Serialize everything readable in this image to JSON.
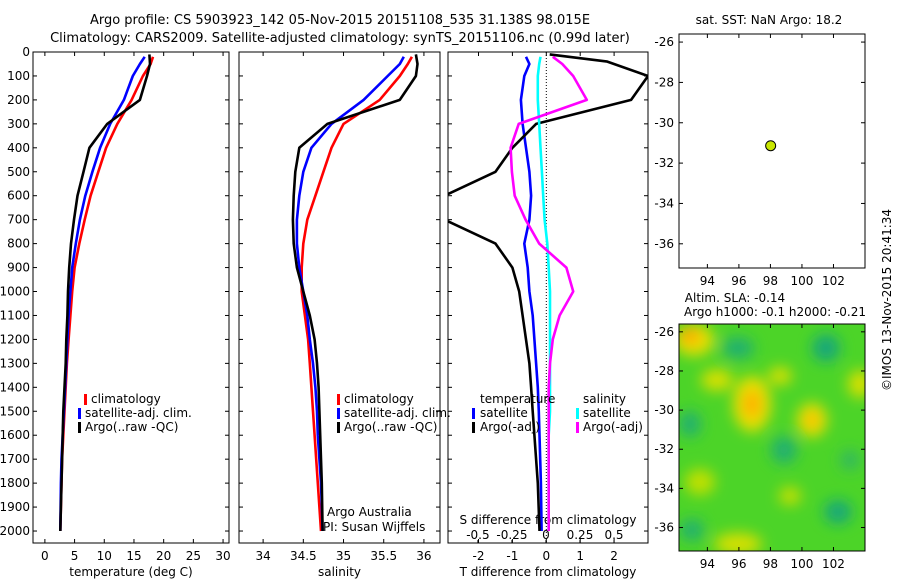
{
  "header": {
    "line1": "Argo profile: CS 5903923_142 05-Nov-2015 20151108_535 31.138S 98.015E",
    "line2": "Climatology: CARS2009. Satellite-adjusted climatology: synTS_20151106.nc (0.99d later)"
  },
  "colors": {
    "climatology": "#ff0000",
    "satellite": "#0000ff",
    "argo": "#000000",
    "sal_satellite": "#00ffff",
    "sal_argo": "#ff00ff",
    "float_marker": "#c8e600"
  },
  "chart_data": [
    {
      "type": "line",
      "xlabel": "temperature (deg C)",
      "xlim": [
        -2,
        31
      ],
      "ylim": [
        2050,
        0
      ],
      "xticks": [
        0,
        5,
        10,
        15,
        20,
        25,
        30
      ],
      "yticks": [
        0,
        100,
        200,
        300,
        400,
        500,
        600,
        700,
        800,
        900,
        1000,
        1100,
        1200,
        1300,
        1400,
        1500,
        1600,
        1700,
        1800,
        1900,
        2000
      ],
      "legend": [
        "climatology",
        "satellite-adj. clim.",
        "Argo(..raw -QC)"
      ],
      "series": [
        {
          "name": "climatology",
          "color_key": "climatology",
          "x": [
            18.2,
            17.8,
            16.5,
            14.6,
            12.2,
            10.3,
            9.0,
            7.7,
            6.7,
            5.8,
            5.0,
            4.6,
            4.3,
            4.0,
            3.7,
            3.5,
            3.3,
            3.1,
            2.9,
            2.8,
            2.6
          ],
          "y": [
            20,
            50,
            100,
            200,
            300,
            400,
            500,
            600,
            700,
            800,
            900,
            1000,
            1100,
            1200,
            1300,
            1400,
            1500,
            1600,
            1700,
            1800,
            2000
          ]
        },
        {
          "name": "satellite-adj. clim.",
          "color_key": "satellite",
          "x": [
            16.8,
            16.0,
            14.8,
            13.3,
            11.0,
            9.3,
            8.0,
            6.8,
            5.9,
            5.2,
            4.6,
            4.3,
            4.0,
            3.8,
            3.6,
            3.4,
            3.2,
            3.0,
            2.8,
            2.7,
            2.6
          ],
          "y": [
            20,
            50,
            100,
            200,
            300,
            400,
            500,
            600,
            700,
            800,
            900,
            1000,
            1100,
            1200,
            1300,
            1400,
            1500,
            1600,
            1700,
            1800,
            2000
          ]
        },
        {
          "name": "Argo(..raw -QC)",
          "color_key": "argo",
          "x": [
            17.6,
            17.7,
            17.2,
            16.0,
            10.5,
            7.5,
            6.5,
            5.5,
            4.9,
            4.4,
            4.1,
            3.9,
            3.8,
            3.6,
            3.5,
            3.3,
            3.1,
            3.0,
            2.9,
            2.8,
            2.6
          ],
          "y": [
            10,
            50,
            100,
            200,
            300,
            400,
            500,
            600,
            700,
            800,
            900,
            1000,
            1100,
            1200,
            1300,
            1400,
            1500,
            1600,
            1700,
            1800,
            2000
          ]
        }
      ]
    },
    {
      "type": "line",
      "xlabel": "salinity",
      "xlim": [
        33.7,
        36.2
      ],
      "ylim": [
        2050,
        0
      ],
      "xticks": [
        34,
        34.5,
        35,
        35.5,
        36
      ],
      "legend": [
        "climatology",
        "satellite-adj. clim.",
        "Argo(..raw -QC)"
      ],
      "annotation": [
        "Argo Australia",
        "PI: Susan Wijffels"
      ],
      "series": [
        {
          "name": "climatology",
          "color_key": "climatology",
          "x": [
            35.85,
            35.8,
            35.7,
            35.45,
            35.0,
            34.85,
            34.75,
            34.65,
            34.55,
            34.5,
            34.48,
            34.48,
            34.52,
            34.56,
            34.58,
            34.6,
            34.62,
            34.64,
            34.66,
            34.68,
            34.72
          ],
          "y": [
            20,
            50,
            100,
            200,
            300,
            400,
            500,
            600,
            700,
            800,
            900,
            1000,
            1100,
            1200,
            1300,
            1400,
            1500,
            1600,
            1700,
            1800,
            2000
          ]
        },
        {
          "name": "satellite-adj. clim.",
          "color_key": "satellite",
          "x": [
            35.75,
            35.7,
            35.55,
            35.25,
            34.85,
            34.6,
            34.5,
            34.45,
            34.42,
            34.42,
            34.45,
            34.5,
            34.55,
            34.58,
            34.62,
            34.65,
            34.67,
            34.68,
            34.7,
            34.72,
            34.74
          ],
          "y": [
            20,
            50,
            100,
            200,
            300,
            400,
            500,
            600,
            700,
            800,
            900,
            1000,
            1100,
            1200,
            1300,
            1400,
            1500,
            1600,
            1700,
            1800,
            2000
          ]
        },
        {
          "name": "Argo(..raw -QC)",
          "color_key": "argo",
          "x": [
            35.9,
            35.92,
            35.9,
            35.7,
            34.8,
            34.45,
            34.4,
            34.38,
            34.37,
            34.38,
            34.42,
            34.5,
            34.58,
            34.64,
            34.67,
            34.69,
            34.7,
            34.71,
            34.72,
            34.73,
            34.74
          ],
          "y": [
            10,
            50,
            100,
            200,
            300,
            400,
            500,
            600,
            700,
            800,
            900,
            1000,
            1100,
            1200,
            1300,
            1400,
            1500,
            1600,
            1700,
            1800,
            2000
          ]
        }
      ]
    },
    {
      "type": "line",
      "xlabel": "T difference from climatology",
      "xlabel2": "S difference from climatology",
      "xlim": [
        -2.9,
        3.0
      ],
      "x2lim": [
        -0.72,
        0.75
      ],
      "ylim": [
        2050,
        0
      ],
      "xticks": [
        -2,
        -1,
        0,
        1,
        2
      ],
      "x2ticks": [
        -0.5,
        -0.25,
        0,
        0.25,
        0.5
      ],
      "legend_titles": [
        "temperature",
        "salinity"
      ],
      "legend": [
        "satellite",
        "Argo(-adj)",
        "satellite",
        "Argo(-adj)"
      ],
      "series": [
        {
          "name": "temperature satellite",
          "color_key": "satellite",
          "x": [
            -0.6,
            -0.5,
            -0.65,
            -0.75,
            -0.7,
            -0.6,
            -0.5,
            -0.45,
            -0.5,
            -0.65,
            -0.55,
            -0.5,
            -0.4,
            -0.35,
            -0.3,
            -0.25,
            -0.22,
            -0.2,
            -0.18,
            -0.16,
            -0.14
          ],
          "y": [
            20,
            50,
            100,
            200,
            300,
            400,
            500,
            600,
            700,
            800,
            900,
            1000,
            1100,
            1200,
            1300,
            1400,
            1500,
            1600,
            1700,
            1800,
            2000
          ]
        },
        {
          "name": "temperature Argo(-adj)",
          "color_key": "argo",
          "x": [
            0.1,
            1.8,
            3.0,
            2.5,
            -0.3,
            -1.0,
            -1.5,
            -3.0,
            -3.0,
            -1.5,
            -1.0,
            -0.8,
            -0.7,
            -0.6,
            -0.5,
            -0.45,
            -0.4,
            -0.35,
            -0.3,
            -0.25,
            -0.2
          ],
          "y": [
            10,
            40,
            100,
            200,
            300,
            400,
            500,
            600,
            700,
            800,
            900,
            1000,
            1100,
            1200,
            1300,
            1400,
            1500,
            1600,
            1700,
            1800,
            2000
          ]
        },
        {
          "name": "salinity satellite",
          "color_key": "sal_satellite",
          "x": [
            -0.04,
            -0.05,
            -0.06,
            -0.06,
            -0.05,
            -0.04,
            -0.03,
            -0.02,
            -0.01,
            0.01,
            0.02,
            0.03,
            0.03,
            0.03,
            0.03,
            0.03,
            0.03,
            0.02,
            0.02,
            0.02,
            0.02
          ],
          "y": [
            20,
            50,
            100,
            200,
            300,
            400,
            500,
            600,
            700,
            800,
            900,
            1000,
            1100,
            1200,
            1300,
            1400,
            1500,
            1600,
            1700,
            1800,
            2000
          ]
        },
        {
          "name": "salinity Argo(-adj)",
          "color_key": "sal_argo",
          "x": [
            0.05,
            0.12,
            0.2,
            0.3,
            -0.2,
            -0.26,
            -0.25,
            -0.23,
            -0.15,
            -0.05,
            0.15,
            0.2,
            0.1,
            0.05,
            0.03,
            0.02,
            0.02,
            0.02,
            0.02,
            0.02,
            0.02
          ],
          "y": [
            20,
            50,
            100,
            200,
            300,
            400,
            500,
            600,
            700,
            800,
            900,
            1000,
            1100,
            1200,
            1300,
            1400,
            1500,
            1600,
            1700,
            1800,
            2000
          ]
        }
      ]
    },
    {
      "type": "scatter",
      "title": "sat. SST: NaN Argo: 18.2",
      "xlim": [
        92.2,
        104.0
      ],
      "ylim": [
        -37.2,
        -25.6
      ],
      "xticks": [
        94,
        96,
        98,
        100,
        102
      ],
      "yticks": [
        -26,
        -28,
        -30,
        -32,
        -34,
        -36
      ],
      "points": [
        {
          "lon": 98.015,
          "lat": -31.138
        }
      ]
    },
    {
      "type": "heatmap",
      "title_line1": "Altim. SLA: -0.14",
      "title_line2": "Argo h1000: -0.1 h2000: -0.21",
      "xlim": [
        92.2,
        104.0
      ],
      "ylim": [
        -37.2,
        -25.6
      ],
      "xticks": [
        94,
        96,
        98,
        100,
        102
      ],
      "yticks": [
        -26,
        -28,
        -30,
        -32,
        -34,
        -36
      ]
    }
  ],
  "side_label": "©IMOS 13-Nov-2015 20:41:34"
}
